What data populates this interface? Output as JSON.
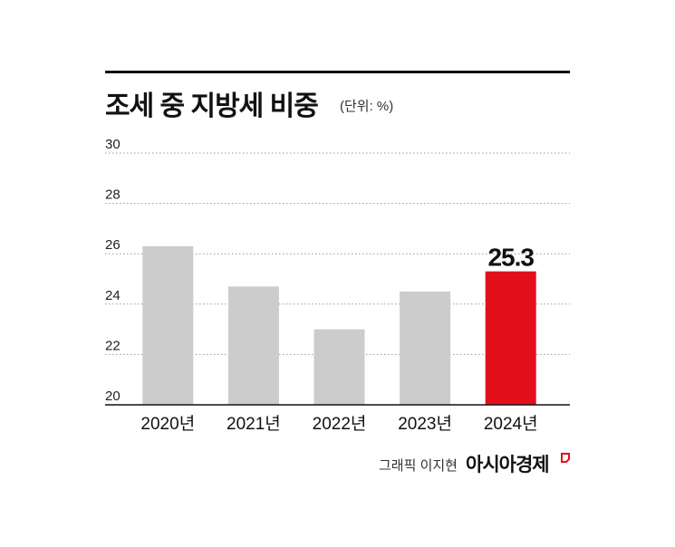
{
  "header": {
    "title": "조세 중 지방세 비중",
    "unit": "(단위: %)"
  },
  "footer": {
    "credit": "그래픽 이지현",
    "brand": "아시아경제"
  },
  "colors": {
    "bar_default": "#cccccc",
    "bar_highlight": "#e3101c",
    "grid": "#999999",
    "axis": "#111111",
    "brand_mark": "#e3101c"
  },
  "chart_data": {
    "type": "bar",
    "title": "조세 중 지방세 비중",
    "ylabel": "(단위: %)",
    "categories": [
      "2020년",
      "2021년",
      "2022년",
      "2023년",
      "2024년"
    ],
    "values": [
      26.3,
      24.7,
      23.0,
      24.5,
      25.3
    ],
    "highlight_index": 4,
    "data_labels": [
      "",
      "",
      "",
      "",
      "25.3"
    ],
    "ylim": [
      20,
      30
    ],
    "yticks": [
      20,
      22,
      24,
      26,
      28,
      30
    ],
    "grid": "dotted horizontal"
  }
}
